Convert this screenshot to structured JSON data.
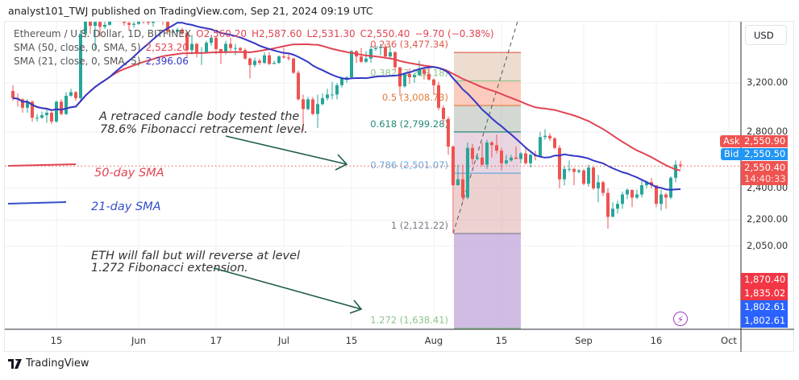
{
  "header": {
    "published": "analyst101_TWJ published on TradingView.com, Sep 21, 2024 09:19 UTC"
  },
  "legend": {
    "symbol": "Ethereum / U.S. Dollar, 1D, BITFINEX",
    "open": "O2,560.20",
    "high": "H2,587.60",
    "low": "L2,531.30",
    "close": "C2,550.40",
    "change": "−9.70 (−0.38%)",
    "sma50_label": "SMA (50, close, 0, SMA, 5)",
    "sma50_value": "2,523.20",
    "sma21_label": "SMA (21, close, 0, SMA, 5)",
    "sma21_value": "2,396.06"
  },
  "price_axis": {
    "currency": "USD",
    "ticks": [
      {
        "p": 3200,
        "label": "3,200.00"
      },
      {
        "p": 2800,
        "label": "2,800.00"
      },
      {
        "p": 2400,
        "label": "2,400.00"
      },
      {
        "p": 2200,
        "label": "2,200.00"
      },
      {
        "p": 2050,
        "label": "2,050.00"
      }
    ],
    "ask": {
      "label": "Ask",
      "value": "2,550.90"
    },
    "bid": {
      "label": "Bid",
      "value": "2,550.50"
    },
    "last": {
      "value": "2,550.40",
      "countdown": "14:40:33"
    },
    "extra_labels": [
      {
        "value": "1,870.40",
        "color": "#f23645"
      },
      {
        "value": "1,835.02",
        "color": "#f23645"
      },
      {
        "value": "1,802.61",
        "color": "#2962ff"
      },
      {
        "value": "1,802.61",
        "color": "#2962ff"
      }
    ]
  },
  "time_axis": [
    {
      "label": "15",
      "date": "2024-05-15"
    },
    {
      "label": "Jun",
      "date": "2024-06-01"
    },
    {
      "label": "17",
      "date": "2024-06-17"
    },
    {
      "label": "Jul",
      "date": "2024-07-01"
    },
    {
      "label": "15",
      "date": "2024-07-15"
    },
    {
      "label": "Aug",
      "date": "2024-08-01"
    },
    {
      "label": "15",
      "date": "2024-08-15"
    },
    {
      "label": "Sep",
      "date": "2024-09-01"
    },
    {
      "label": "16",
      "date": "2024-09-16"
    },
    {
      "label": "Oct",
      "date": "2024-10-01"
    }
  ],
  "colors": {
    "up": "#26a69a",
    "down": "#ef5350",
    "sma50": "#e04552",
    "sma21": "#3438c4",
    "arrow": "#1f5c4b",
    "ask": "#ef5350",
    "bid": "#2196f3"
  },
  "annotations": {
    "retrace_line1": "A retraced candle body tested the",
    "retrace_line2": " 78.6% Fibonacci retracement level.",
    "sma50": "50-day SMA",
    "sma21": "21-day SMA",
    "ext_line1": "ETH  will fall but will reverse at level",
    "ext_line2": "1.272 Fibonacci extension."
  },
  "footer": {
    "brand": "TradingView"
  },
  "chart_data": {
    "type": "candlestick",
    "scale": "log",
    "grid": true,
    "sma_periods": [
      50,
      21
    ],
    "fibonacci": {
      "from_date": "2024-08-05",
      "to_date": "2024-08-19",
      "trend": [
        [
          "2024-08-05",
          2121.22
        ],
        [
          "2024-08-19",
          3896.25
        ]
      ],
      "levels": [
        {
          "r": "0.236",
          "price": 3477.34,
          "label": "0.236 (3,477.34)",
          "color": "#e0584a"
        },
        {
          "r": "0.382",
          "price": 3218.18,
          "label": "0.382 (3,218.18)",
          "color": "#8cc58a"
        },
        {
          "r": "0.5",
          "price": 3008.73,
          "label": "0.5 (3,008.73)",
          "color": "#e27a36"
        },
        {
          "r": "0.618",
          "price": 2799.28,
          "label": "0.618 (2,799.28)",
          "color": "#26897a"
        },
        {
          "r": "0.786",
          "price": 2501.07,
          "label": "0.786 (2,501.07)",
          "color": "#6aa6dc"
        },
        {
          "r": "1",
          "price": 2121.22,
          "label": "1 (2,121.22)",
          "color": "#787b86"
        },
        {
          "r": "1.272",
          "price": 1638.41,
          "label": "1.272 (1,638.41)",
          "color": "#8cc58a"
        }
      ],
      "bands": [
        "rgba(214,180,150,0.45)",
        "rgba(246,140,110,0.45)",
        "rgba(168,178,168,0.5)",
        "rgba(214,178,200,0.55)",
        "rgba(222,172,172,0.55)",
        "rgba(190,160,216,0.7)"
      ]
    },
    "candles": [
      [
        "2024-05-06",
        3130,
        3180,
        3050,
        3070
      ],
      [
        "2024-05-07",
        3070,
        3110,
        3000,
        3060
      ],
      [
        "2024-05-08",
        3060,
        3070,
        2950,
        2990
      ],
      [
        "2024-05-09",
        2990,
        3060,
        2950,
        3040
      ],
      [
        "2024-05-10",
        3040,
        3050,
        2880,
        2910
      ],
      [
        "2024-05-11",
        2910,
        2940,
        2880,
        2910
      ],
      [
        "2024-05-12",
        2910,
        2960,
        2900,
        2930
      ],
      [
        "2024-05-13",
        2930,
        2990,
        2870,
        2950
      ],
      [
        "2024-05-14",
        2950,
        2960,
        2860,
        2880
      ],
      [
        "2024-05-15",
        2880,
        3050,
        2870,
        3040
      ],
      [
        "2024-05-16",
        3040,
        3060,
        2930,
        2940
      ],
      [
        "2024-05-17",
        2940,
        3120,
        2930,
        3090
      ],
      [
        "2024-05-18",
        3090,
        3150,
        3080,
        3120
      ],
      [
        "2024-05-19",
        3120,
        3130,
        3050,
        3070
      ],
      [
        "2024-05-20",
        3070,
        3700,
        3050,
        3660
      ],
      [
        "2024-05-21",
        3660,
        3840,
        3620,
        3790
      ],
      [
        "2024-05-22",
        3790,
        3810,
        3660,
        3740
      ],
      [
        "2024-05-23",
        3740,
        3940,
        3510,
        3780
      ],
      [
        "2024-05-24",
        3780,
        3820,
        3630,
        3730
      ],
      [
        "2024-05-25",
        3730,
        3790,
        3710,
        3750
      ],
      [
        "2024-05-26",
        3750,
        3880,
        3740,
        3830
      ],
      [
        "2024-05-27",
        3830,
        3970,
        3820,
        3890
      ],
      [
        "2024-05-28",
        3890,
        3930,
        3780,
        3840
      ],
      [
        "2024-05-29",
        3840,
        3880,
        3740,
        3770
      ],
      [
        "2024-05-30",
        3770,
        3820,
        3700,
        3750
      ],
      [
        "2024-05-31",
        3750,
        3840,
        3720,
        3760
      ],
      [
        "2024-06-01",
        3760,
        3830,
        3750,
        3810
      ],
      [
        "2024-06-02",
        3810,
        3840,
        3760,
        3780
      ],
      [
        "2024-06-03",
        3780,
        3850,
        3750,
        3770
      ],
      [
        "2024-06-04",
        3770,
        3830,
        3730,
        3810
      ],
      [
        "2024-06-05",
        3810,
        3890,
        3780,
        3870
      ],
      [
        "2024-06-06",
        3870,
        3880,
        3750,
        3810
      ],
      [
        "2024-06-07",
        3810,
        3840,
        3650,
        3680
      ],
      [
        "2024-06-08",
        3680,
        3710,
        3660,
        3680
      ],
      [
        "2024-06-09",
        3680,
        3720,
        3660,
        3700
      ],
      [
        "2024-06-10",
        3700,
        3720,
        3640,
        3670
      ],
      [
        "2024-06-11",
        3670,
        3680,
        3430,
        3500
      ],
      [
        "2024-06-12",
        3500,
        3650,
        3460,
        3560
      ],
      [
        "2024-06-13",
        3560,
        3570,
        3430,
        3470
      ],
      [
        "2024-06-14",
        3470,
        3530,
        3360,
        3480
      ],
      [
        "2024-06-15",
        3480,
        3590,
        3470,
        3570
      ],
      [
        "2024-06-16",
        3570,
        3650,
        3540,
        3620
      ],
      [
        "2024-06-17",
        3620,
        3630,
        3460,
        3510
      ],
      [
        "2024-06-18",
        3510,
        3510,
        3370,
        3480
      ],
      [
        "2024-06-19",
        3480,
        3590,
        3460,
        3560
      ],
      [
        "2024-06-20",
        3560,
        3620,
        3490,
        3520
      ],
      [
        "2024-06-21",
        3520,
        3560,
        3450,
        3520
      ],
      [
        "2024-06-22",
        3520,
        3530,
        3480,
        3500
      ],
      [
        "2024-06-23",
        3500,
        3520,
        3410,
        3420
      ],
      [
        "2024-06-24",
        3420,
        3430,
        3240,
        3360
      ],
      [
        "2024-06-25",
        3360,
        3430,
        3340,
        3400
      ],
      [
        "2024-06-26",
        3400,
        3420,
        3360,
        3380
      ],
      [
        "2024-06-27",
        3380,
        3480,
        3370,
        3450
      ],
      [
        "2024-06-28",
        3450,
        3480,
        3360,
        3370
      ],
      [
        "2024-06-29",
        3370,
        3400,
        3370,
        3380
      ],
      [
        "2024-06-30",
        3380,
        3450,
        3370,
        3440
      ],
      [
        "2024-07-01",
        3440,
        3520,
        3420,
        3430
      ],
      [
        "2024-07-02",
        3430,
        3460,
        3400,
        3420
      ],
      [
        "2024-07-03",
        3420,
        3430,
        3280,
        3290
      ],
      [
        "2024-07-04",
        3290,
        3310,
        3050,
        3060
      ],
      [
        "2024-07-05",
        3060,
        3100,
        2810,
        2980
      ],
      [
        "2024-07-06",
        2980,
        3080,
        2970,
        3060
      ],
      [
        "2024-07-07",
        3060,
        3080,
        2930,
        2940
      ],
      [
        "2024-07-08",
        2940,
        3100,
        2830,
        3020
      ],
      [
        "2024-07-09",
        3020,
        3110,
        3010,
        3070
      ],
      [
        "2024-07-10",
        3070,
        3150,
        3050,
        3100
      ],
      [
        "2024-07-11",
        3100,
        3210,
        3060,
        3100
      ],
      [
        "2024-07-12",
        3100,
        3200,
        3060,
        3180
      ],
      [
        "2024-07-13",
        3180,
        3250,
        3160,
        3240
      ],
      [
        "2024-07-14",
        3240,
        3260,
        3200,
        3250
      ],
      [
        "2024-07-15",
        3250,
        3500,
        3240,
        3490
      ],
      [
        "2024-07-16",
        3490,
        3500,
        3380,
        3440
      ],
      [
        "2024-07-17",
        3440,
        3520,
        3380,
        3390
      ],
      [
        "2024-07-18",
        3390,
        3490,
        3380,
        3420
      ],
      [
        "2024-07-19",
        3420,
        3540,
        3380,
        3510
      ],
      [
        "2024-07-20",
        3510,
        3540,
        3490,
        3520
      ],
      [
        "2024-07-21",
        3520,
        3560,
        3450,
        3530
      ],
      [
        "2024-07-22",
        3530,
        3560,
        3420,
        3440
      ],
      [
        "2024-07-23",
        3440,
        3540,
        3430,
        3480
      ],
      [
        "2024-07-24",
        3480,
        3490,
        3310,
        3340
      ],
      [
        "2024-07-25",
        3340,
        3340,
        3090,
        3170
      ],
      [
        "2024-07-26",
        3170,
        3290,
        3160,
        3280
      ],
      [
        "2024-07-27",
        3280,
        3330,
        3190,
        3250
      ],
      [
        "2024-07-28",
        3250,
        3290,
        3200,
        3270
      ],
      [
        "2024-07-29",
        3270,
        3400,
        3260,
        3320
      ],
      [
        "2024-07-30",
        3320,
        3330,
        3230,
        3280
      ],
      [
        "2024-07-31",
        3280,
        3350,
        3220,
        3230
      ],
      [
        "2024-08-01",
        3230,
        3240,
        3100,
        3180
      ],
      [
        "2024-08-02",
        3180,
        3210,
        2970,
        2990
      ],
      [
        "2024-08-03",
        2990,
        3010,
        2860,
        2900
      ],
      [
        "2024-08-04",
        2900,
        2920,
        2630,
        2690
      ],
      [
        "2024-08-05",
        2690,
        2700,
        2121,
        2420
      ],
      [
        "2024-08-06",
        2420,
        2560,
        2420,
        2460
      ],
      [
        "2024-08-07",
        2460,
        2560,
        2320,
        2340
      ],
      [
        "2024-08-08",
        2340,
        2720,
        2330,
        2680
      ],
      [
        "2024-08-09",
        2680,
        2710,
        2560,
        2600
      ],
      [
        "2024-08-10",
        2600,
        2630,
        2590,
        2610
      ],
      [
        "2024-08-11",
        2610,
        2720,
        2550,
        2560
      ],
      [
        "2024-08-12",
        2560,
        2740,
        2530,
        2720
      ],
      [
        "2024-08-13",
        2720,
        2730,
        2610,
        2700
      ],
      [
        "2024-08-14",
        2700,
        2780,
        2640,
        2660
      ],
      [
        "2024-08-15",
        2660,
        2680,
        2520,
        2570
      ],
      [
        "2024-08-16",
        2570,
        2630,
        2560,
        2590
      ],
      [
        "2024-08-17",
        2590,
        2630,
        2580,
        2610
      ],
      [
        "2024-08-18",
        2610,
        2690,
        2600,
        2600
      ],
      [
        "2024-08-19",
        2600,
        2650,
        2570,
        2640
      ],
      [
        "2024-08-20",
        2640,
        2690,
        2560,
        2570
      ],
      [
        "2024-08-21",
        2570,
        2640,
        2540,
        2630
      ],
      [
        "2024-08-22",
        2630,
        2660,
        2590,
        2620
      ],
      [
        "2024-08-23",
        2620,
        2800,
        2620,
        2760
      ],
      [
        "2024-08-24",
        2760,
        2820,
        2740,
        2770
      ],
      [
        "2024-08-25",
        2770,
        2790,
        2730,
        2750
      ],
      [
        "2024-08-26",
        2750,
        2760,
        2670,
        2680
      ],
      [
        "2024-08-27",
        2680,
        2700,
        2400,
        2460
      ],
      [
        "2024-08-28",
        2460,
        2550,
        2420,
        2530
      ],
      [
        "2024-08-29",
        2530,
        2590,
        2510,
        2530
      ],
      [
        "2024-08-30",
        2530,
        2540,
        2420,
        2510
      ],
      [
        "2024-08-31",
        2510,
        2530,
        2500,
        2520
      ],
      [
        "2024-09-01",
        2520,
        2530,
        2420,
        2430
      ],
      [
        "2024-09-02",
        2430,
        2560,
        2410,
        2540
      ],
      [
        "2024-09-03",
        2540,
        2550,
        2390,
        2400
      ],
      [
        "2024-09-04",
        2400,
        2490,
        2310,
        2440
      ],
      [
        "2024-09-05",
        2440,
        2450,
        2350,
        2370
      ],
      [
        "2024-09-06",
        2370,
        2400,
        2150,
        2220
      ],
      [
        "2024-09-07",
        2220,
        2310,
        2220,
        2270
      ],
      [
        "2024-09-08",
        2270,
        2320,
        2240,
        2300
      ],
      [
        "2024-09-09",
        2300,
        2380,
        2270,
        2360
      ],
      [
        "2024-09-10",
        2360,
        2400,
        2330,
        2390
      ],
      [
        "2024-09-11",
        2390,
        2390,
        2280,
        2340
      ],
      [
        "2024-09-12",
        2340,
        2390,
        2330,
        2360
      ],
      [
        "2024-09-13",
        2360,
        2460,
        2340,
        2420
      ],
      [
        "2024-09-14",
        2420,
        2450,
        2400,
        2440
      ],
      [
        "2024-09-15",
        2440,
        2470,
        2400,
        2420
      ],
      [
        "2024-09-16",
        2420,
        2420,
        2280,
        2300
      ],
      [
        "2024-09-17",
        2300,
        2390,
        2260,
        2360
      ],
      [
        "2024-09-18",
        2360,
        2370,
        2270,
        2340
      ],
      [
        "2024-09-19",
        2340,
        2480,
        2330,
        2470
      ],
      [
        "2024-09-20",
        2470,
        2590,
        2440,
        2560
      ],
      [
        "2024-09-21",
        2560.2,
        2587.6,
        2531.3,
        2550.4
      ]
    ]
  }
}
